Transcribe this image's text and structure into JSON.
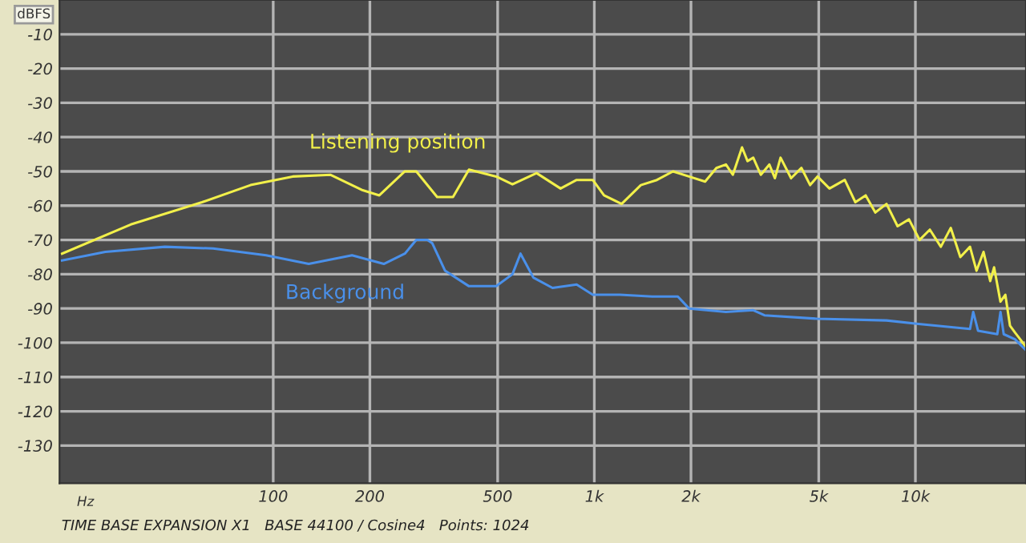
{
  "chart_data": {
    "type": "line",
    "xlabel": "Hz",
    "ylabel": "dBFS",
    "log": "x",
    "grid": true,
    "legend": false,
    "marker": "none",
    "line_style": "solid",
    "xlim": [
      21.6,
      22100
    ],
    "ylim": [
      -141,
      0
    ],
    "xticks": [
      100,
      200,
      500,
      {
        "value": 1000,
        "label": "1k"
      },
      {
        "value": 2000,
        "label": "2k"
      },
      {
        "value": 5000,
        "label": "5k"
      },
      {
        "value": 10000,
        "label": "10k"
      }
    ],
    "yticks": [
      -10,
      -20,
      -30,
      -40,
      -50,
      -60,
      -70,
      -80,
      -90,
      -100,
      -110,
      -120,
      -130
    ],
    "series": [
      {
        "name": "Listening position",
        "color": "#f2f04a",
        "x": [
          22,
          36,
          60,
          85,
          115,
          151,
          190,
          214,
          257,
          279,
          324,
          363,
          407,
          495,
          556,
          661,
          785,
          881,
          989,
          1072,
          1216,
          1396,
          1567,
          1758,
          1972,
          2213,
          2400,
          2570,
          2700,
          2884,
          3000,
          3126,
          3300,
          3508,
          3650,
          3802,
          4100,
          4416,
          4700,
          4955,
          5400,
          6026,
          6500,
          7000,
          7500,
          8128,
          8800,
          9550,
          10300,
          11092,
          12000,
          12882,
          13800,
          14791,
          15500,
          16300,
          17100,
          17579,
          18400,
          19055,
          19700,
          20417,
          21200,
          22000
        ],
        "values": [
          -74,
          -65.5,
          -59,
          -54,
          -51.5,
          -51,
          -55.5,
          -57,
          -50,
          -50,
          -57.5,
          -57.5,
          -49.5,
          -51.5,
          -53.8,
          -50.5,
          -55,
          -52.5,
          -52.5,
          -57,
          -59.5,
          -54,
          -52.5,
          -50,
          -51.5,
          -53,
          -49,
          -48,
          -51,
          -43,
          -47,
          -46,
          -51,
          -48,
          -52,
          -46,
          -52,
          -49,
          -54,
          -51.5,
          -55,
          -52.5,
          -59,
          -57,
          -62,
          -59.5,
          -66,
          -64,
          -70,
          -67,
          -72,
          -66.5,
          -75,
          -72,
          -79,
          -73.5,
          -82,
          -78,
          -88,
          -86,
          -95,
          -97,
          -99,
          -101
        ]
      },
      {
        "name": "Background",
        "color": "#4a90ea",
        "x": [
          22,
          30,
          46,
          65,
          95,
          129,
          176,
          221,
          257,
          279,
          302,
          313,
          343,
          407,
          495,
          556,
          589,
          646,
          741,
          881,
          989,
          1202,
          1514,
          1820,
          1972,
          2570,
          3126,
          3388,
          4955,
          8128,
          10233,
          14791,
          15136,
          15668,
          17989,
          18408,
          18836,
          20417,
          22000
        ],
        "values": [
          -76,
          -73.5,
          -72,
          -72.5,
          -74.5,
          -77,
          -74.5,
          -77,
          -74,
          -70,
          -70,
          -71,
          -79,
          -83.5,
          -83.5,
          -80,
          -74,
          -81,
          -84,
          -83,
          -86,
          -86,
          -86.5,
          -86.5,
          -90,
          -91,
          -90.5,
          -92,
          -93,
          -93.5,
          -94.5,
          -96,
          -91,
          -96.5,
          -97.5,
          -91,
          -97.5,
          -99,
          -102
        ]
      }
    ],
    "annotations": [
      "TIME BASE EXPANSION X1   BASE 44100 / Cosine4   Points: 1024"
    ]
  }
}
